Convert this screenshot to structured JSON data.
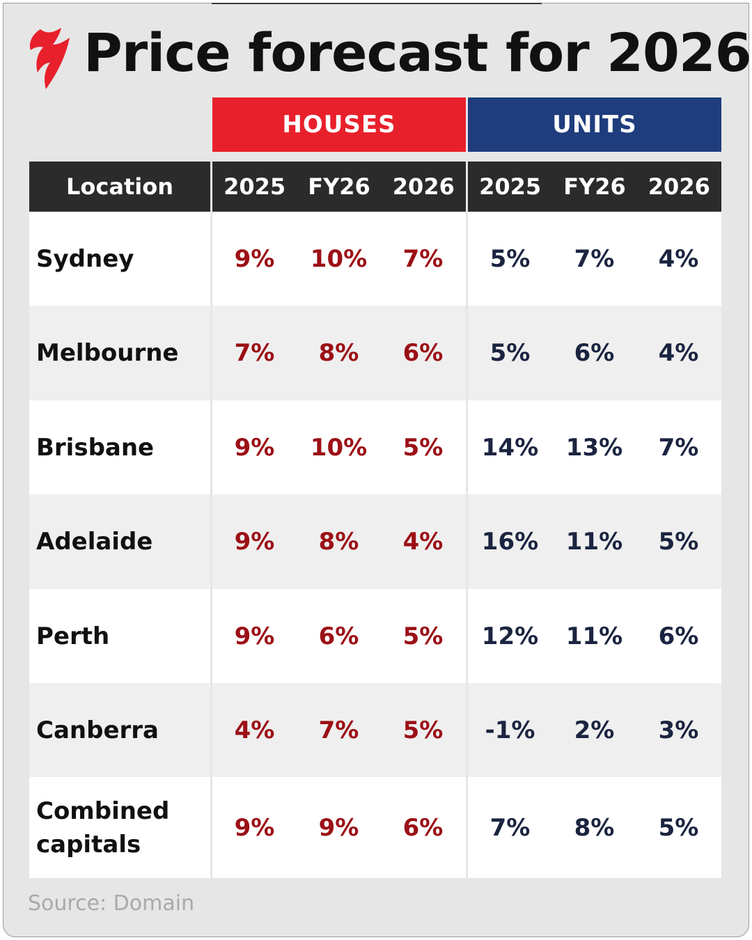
{
  "title": "Price forecast for 2026",
  "source": "Source: Domain",
  "colors": {
    "houses": "#e8202b",
    "units": "#1f3d7d",
    "house_value": "#9b1016",
    "unit_value": "#1b2440"
  },
  "chart_data": {
    "type": "table",
    "groups": [
      "HOUSES",
      "UNITS"
    ],
    "columns": [
      "Location",
      "2025",
      "FY26",
      "2026",
      "2025",
      "FY26",
      "2026"
    ],
    "rows": [
      {
        "location": "Sydney",
        "houses": [
          "9%",
          "10%",
          "7%"
        ],
        "units": [
          "5%",
          "7%",
          "4%"
        ]
      },
      {
        "location": "Melbourne",
        "houses": [
          "7%",
          "8%",
          "6%"
        ],
        "units": [
          "5%",
          "6%",
          "4%"
        ]
      },
      {
        "location": "Brisbane",
        "houses": [
          "9%",
          "10%",
          "5%"
        ],
        "units": [
          "14%",
          "13%",
          "7%"
        ]
      },
      {
        "location": "Adelaide",
        "houses": [
          "9%",
          "8%",
          "4%"
        ],
        "units": [
          "16%",
          "11%",
          "5%"
        ]
      },
      {
        "location": "Perth",
        "houses": [
          "9%",
          "6%",
          "5%"
        ],
        "units": [
          "12%",
          "11%",
          "6%"
        ]
      },
      {
        "location": "Canberra",
        "houses": [
          "4%",
          "7%",
          "5%"
        ],
        "units": [
          "-1%",
          "2%",
          "3%"
        ]
      },
      {
        "location": "Combined capitals",
        "houses": [
          "9%",
          "9%",
          "6%"
        ],
        "units": [
          "7%",
          "8%",
          "5%"
        ]
      }
    ]
  }
}
